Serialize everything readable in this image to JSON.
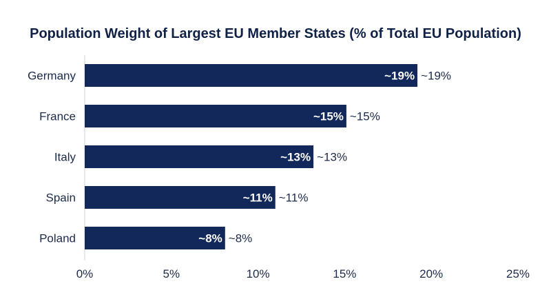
{
  "chart_data": {
    "type": "bar",
    "orientation": "horizontal",
    "title": "Population Weight of Largest EU Member States (% of Total EU Population)",
    "categories": [
      "Germany",
      "France",
      "Italy",
      "Spain",
      "Poland"
    ],
    "values": [
      19.2,
      15.1,
      13.2,
      11.0,
      8.1
    ],
    "data_labels": [
      "~19%",
      "~15%",
      "~13%",
      "~11%",
      "~8%"
    ],
    "x_ticks": [
      "0%",
      "5%",
      "10%",
      "15%",
      "20%",
      "25%"
    ],
    "xlim": [
      0,
      25
    ],
    "bar_color": "#12285a",
    "grid": false,
    "legend": "none"
  }
}
